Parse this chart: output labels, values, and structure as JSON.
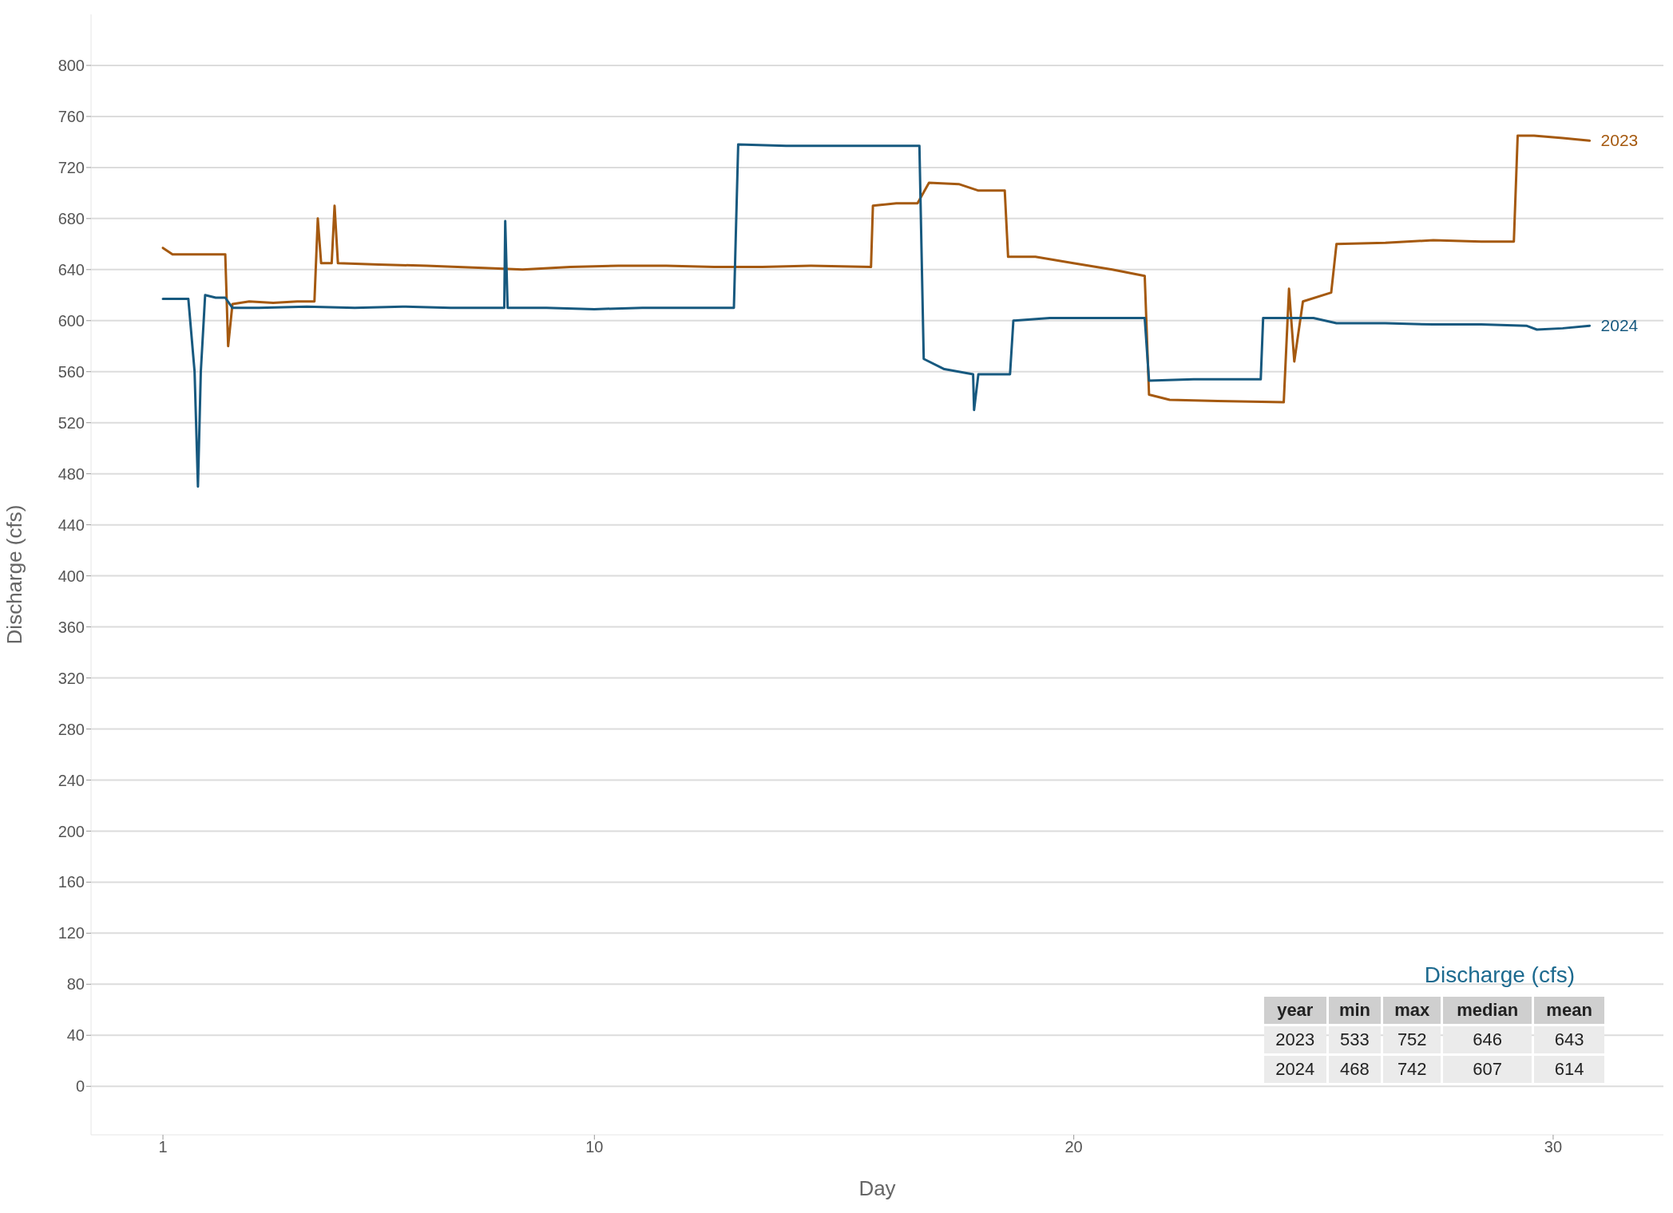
{
  "chart_data": {
    "type": "line",
    "xlabel": "Day",
    "ylabel": "Discharge (cfs)",
    "xlim": [
      -0.5,
      32.3
    ],
    "xticks": [
      1,
      10,
      20,
      30
    ],
    "ylim": [
      -38,
      840
    ],
    "yticks": [
      0,
      40,
      80,
      120,
      160,
      200,
      240,
      280,
      320,
      360,
      400,
      440,
      480,
      520,
      560,
      600,
      640,
      680,
      720,
      760,
      800
    ],
    "grid": "y",
    "series": [
      {
        "name": "2023",
        "color": "#a5590f",
        "x": [
          1.0,
          1.2,
          1.5,
          1.8,
          2.1,
          2.3,
          2.36,
          2.45,
          2.8,
          3.3,
          3.8,
          4.16,
          4.23,
          4.3,
          4.52,
          4.58,
          4.65,
          5.5,
          6.5,
          7.9,
          8.5,
          9.5,
          10.5,
          11.5,
          12.5,
          13.5,
          14.5,
          15.77,
          15.81,
          16.3,
          16.74,
          16.98,
          17.6,
          18.0,
          18.56,
          18.63,
          19.2,
          19.99,
          20.8,
          21.48,
          21.57,
          22.0,
          23.0,
          24.38,
          24.49,
          24.6,
          24.78,
          25.37,
          25.48,
          26.5,
          27.5,
          28.5,
          29.18,
          29.26,
          29.6,
          30.2,
          30.76
        ],
        "values": [
          657,
          652,
          652,
          652,
          652,
          652,
          580,
          613,
          615,
          614,
          615,
          615,
          680,
          645,
          645,
          690,
          645,
          644,
          643,
          641,
          640,
          642,
          643,
          643,
          642,
          642,
          643,
          642,
          690,
          692,
          692,
          708,
          707,
          702,
          702,
          650,
          650,
          645,
          640,
          635,
          542,
          538,
          537,
          536,
          625,
          568,
          615,
          622,
          660,
          661,
          663,
          662,
          662,
          745,
          745,
          743,
          741
        ]
      },
      {
        "name": "2024",
        "color": "#17597f",
        "x": [
          1.0,
          1.3,
          1.53,
          1.66,
          1.73,
          1.79,
          1.88,
          2.1,
          2.3,
          2.45,
          3.0,
          4.0,
          5.0,
          6.0,
          7.0,
          8.12,
          8.14,
          8.19,
          9.0,
          10.0,
          11.0,
          12.0,
          12.91,
          13.0,
          14.0,
          15.0,
          16.0,
          16.78,
          16.87,
          17.3,
          17.9,
          17.92,
          18.01,
          18.67,
          18.74,
          19.5,
          20.5,
          21.48,
          21.57,
          22.5,
          23.9,
          23.95,
          25.0,
          25.48,
          26.5,
          27.5,
          28.5,
          29.44,
          29.66,
          30.2,
          30.76
        ],
        "values": [
          617,
          617,
          617,
          560,
          470,
          560,
          620,
          618,
          618,
          610,
          610,
          611,
          610,
          611,
          610,
          610,
          678,
          610,
          610,
          609,
          610,
          610,
          610,
          738,
          737,
          737,
          737,
          737,
          570,
          562,
          558,
          530,
          558,
          558,
          600,
          602,
          602,
          602,
          553,
          554,
          554,
          602,
          602,
          598,
          598,
          597,
          597,
          596,
          593,
          594,
          596
        ]
      }
    ],
    "annotations": [
      "Discharge (cfs)",
      "year",
      "min",
      "max",
      "median",
      "mean",
      "2023",
      "533",
      "752",
      "646",
      "643",
      "2024",
      "468",
      "742",
      "607",
      "614"
    ]
  }
}
